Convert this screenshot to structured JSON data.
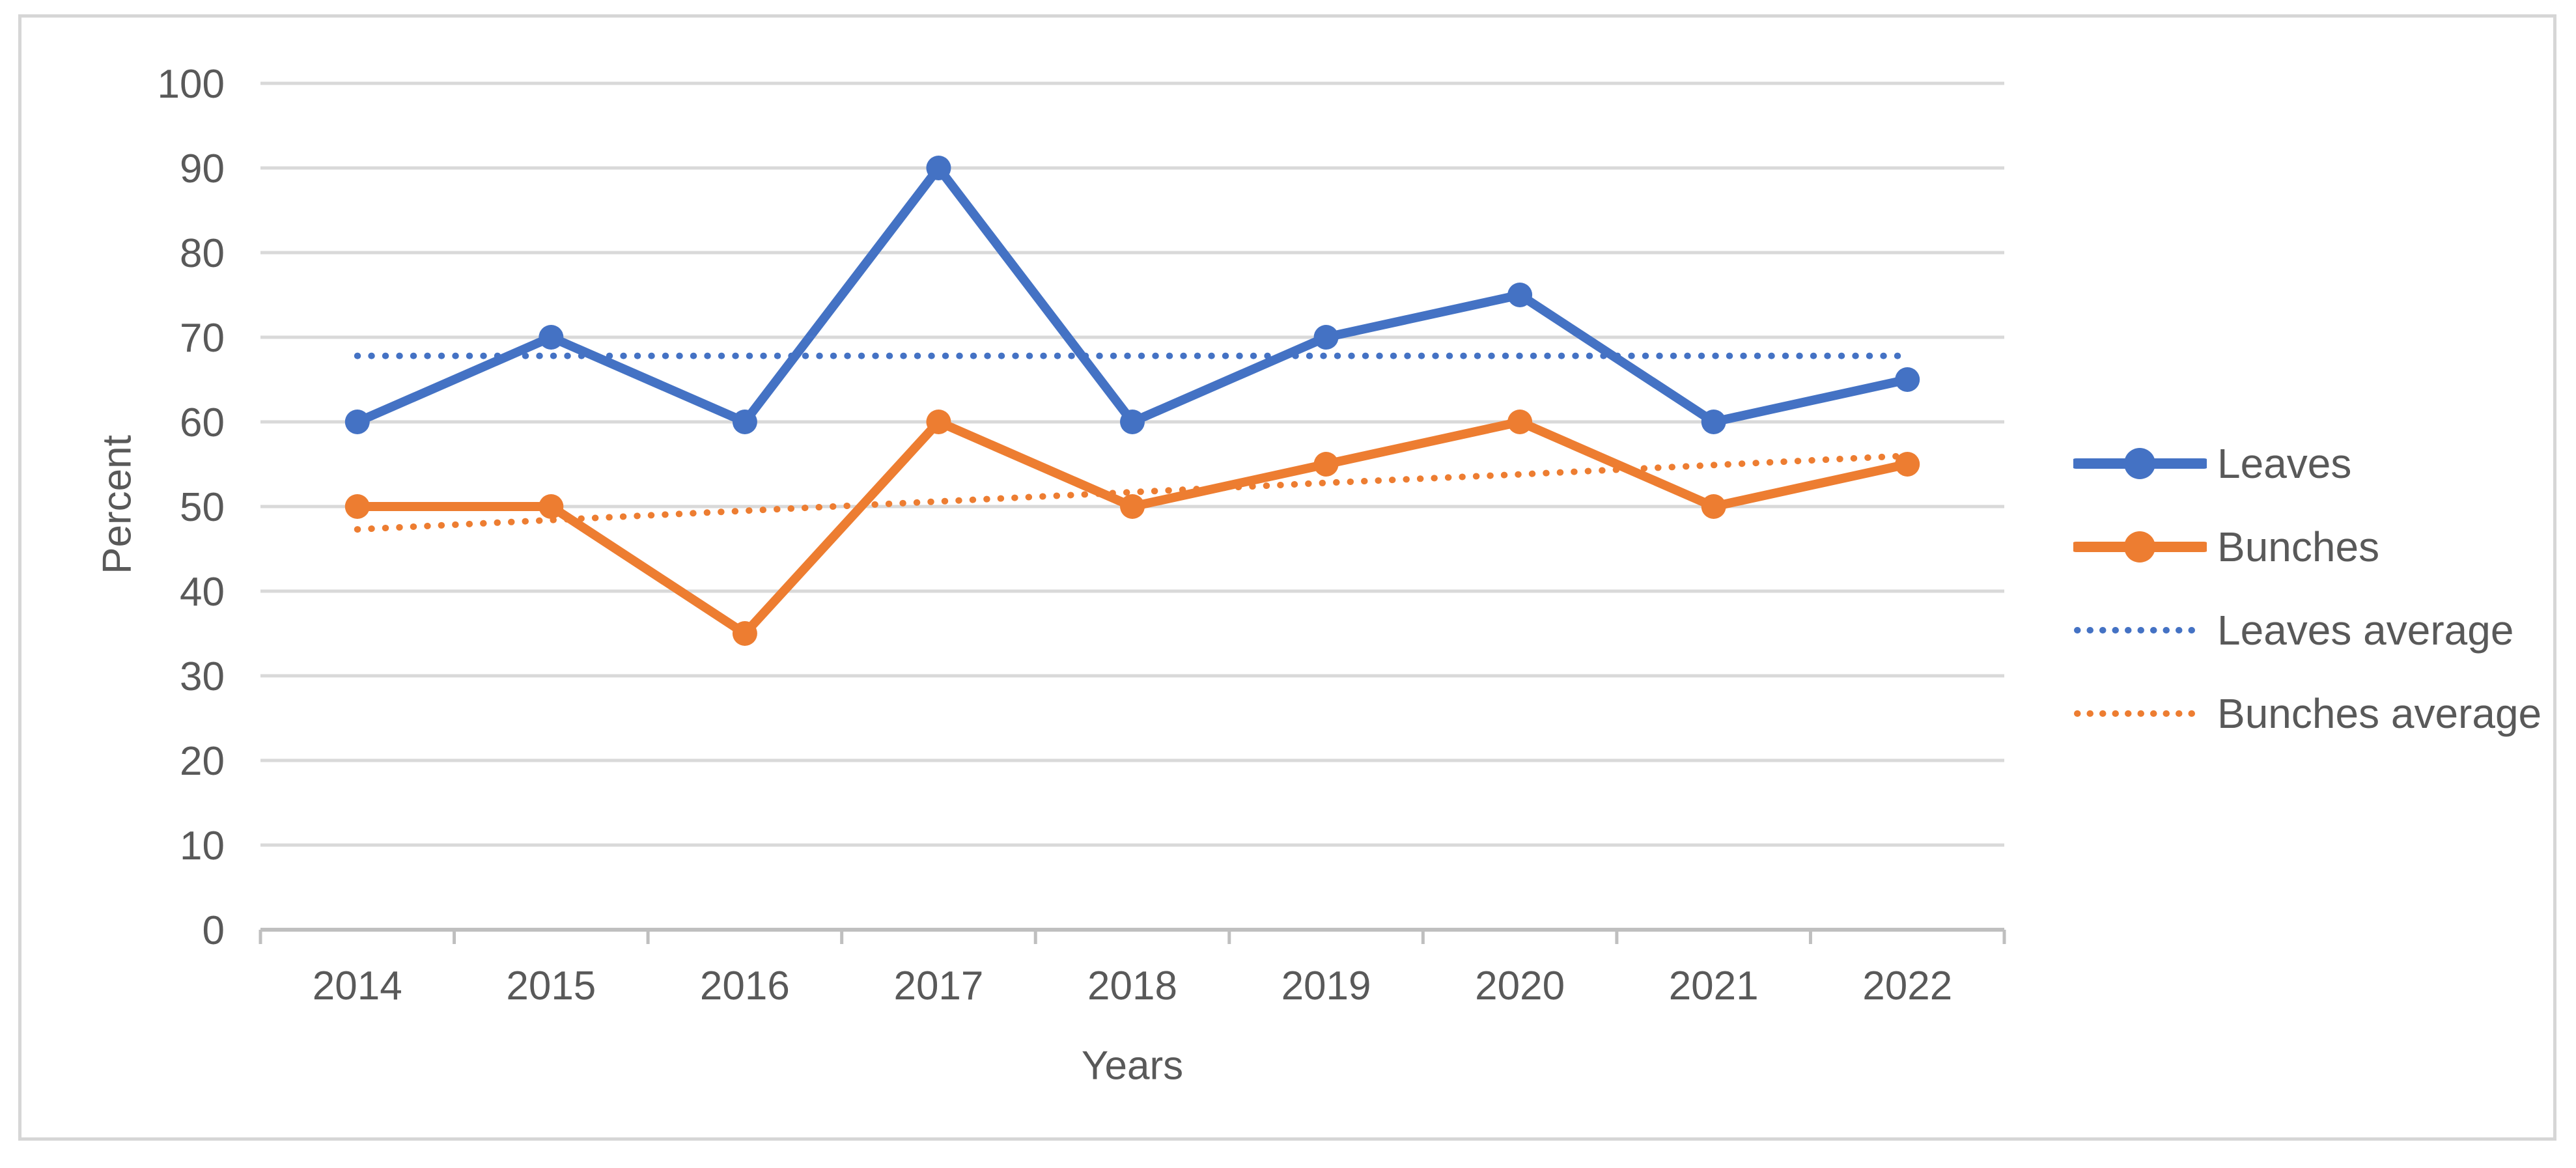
{
  "card": {
    "background": "#ffffff",
    "border_color": "#d6d6d6"
  },
  "chart_data": {
    "type": "line",
    "title": "",
    "xlabel": "Years",
    "ylabel": "Percent",
    "categories": [
      "2014",
      "2015",
      "2016",
      "2017",
      "2018",
      "2019",
      "2020",
      "2021",
      "2022"
    ],
    "series": [
      {
        "name": "Leaves",
        "style": "solid-marker",
        "color": "#4472C4",
        "values": [
          60,
          70,
          60,
          90,
          60,
          70,
          75,
          60,
          65
        ]
      },
      {
        "name": "Bunches",
        "style": "solid-marker",
        "color": "#ED7D31",
        "values": [
          50,
          50,
          35,
          60,
          50,
          55,
          60,
          50,
          55
        ]
      },
      {
        "name": "Leaves average",
        "style": "dotted",
        "color": "#4472C4",
        "values": [
          67.8,
          67.8,
          67.8,
          67.8,
          67.8,
          67.8,
          67.8,
          67.8,
          67.8
        ]
      },
      {
        "name": "Bunches average",
        "style": "dotted",
        "color": "#ED7D31",
        "values": [
          47.3,
          48.4,
          49.5,
          50.6,
          51.7,
          52.8,
          53.8,
          54.9,
          56.0
        ]
      }
    ],
    "ylim": [
      0,
      100
    ],
    "y_ticks": [
      0,
      10,
      20,
      30,
      40,
      50,
      60,
      70,
      80,
      90,
      100
    ],
    "grid": true,
    "legend_position": "right",
    "grid_color": "#D9D9D9",
    "axis_color": "#BFBFBF",
    "text_color": "#595959"
  }
}
